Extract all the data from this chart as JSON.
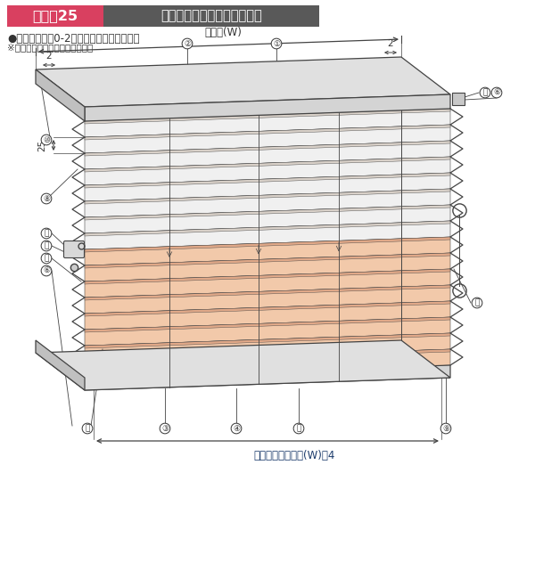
{
  "title1": "もなみ25",
  "title2": "ツインスタイル（コード式）",
  "subtitle": "●仕様コード：0-2、振り分け右操作の場合",
  "note": "※操作は振り分け操作のみです。",
  "label_shohin_haba": "商品幅(W)",
  "label_cross_haba": "クロス幅＝商品幅(W)－4",
  "label_25": "25",
  "label_2a": "2",
  "label_2b": "2",
  "bg_color": "#ffffff",
  "title1_bg": "#d94060",
  "title2_bg": "#595959",
  "title_text_color": "#ffffff",
  "lc": "#444444",
  "shade_color": "#f2c9aa",
  "plain_color": "#f0f0f0",
  "rail_top_color": "#e0e0e0",
  "rail_front_color": "#d4d4d4",
  "rail_side_color": "#c0c0c0",
  "fold_plain": "#d8d0c8",
  "fold_shade": "#e0a888",
  "text_color": "#333333",
  "anno_color": "#1a3a6b",
  "num_color": "#333333"
}
